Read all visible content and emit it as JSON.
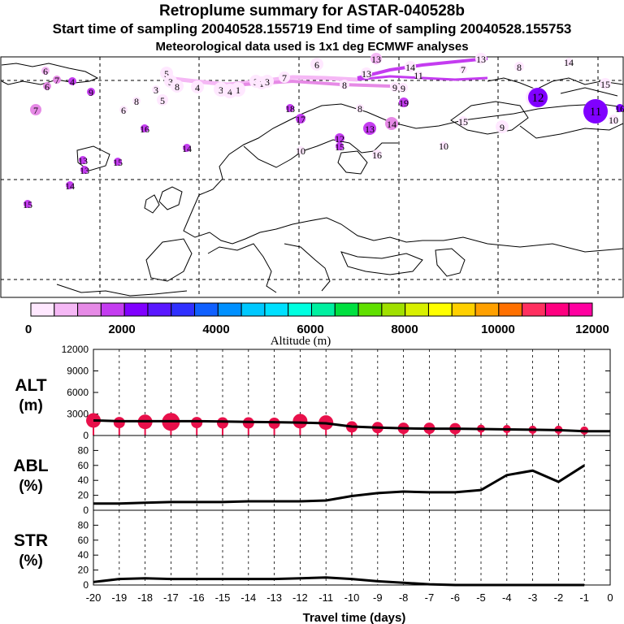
{
  "header": {
    "title": "Retroplume summary for ASTAR-040528b",
    "line2": "Start time of sampling 20040528.155719     End time of sampling 20040528.155753",
    "line3": "Meteorological data used is 1x1 deg ECMWF analyses"
  },
  "colors": {
    "scale": [
      "#ffe8ff",
      "#f5b8f5",
      "#e68ae6",
      "#c43cf0",
      "#8000ff",
      "#5a18ff",
      "#3030ff",
      "#1060ff",
      "#0090ff",
      "#00c8ff",
      "#00e0ff",
      "#00ffe0",
      "#00f0a0",
      "#00e040",
      "#60e000",
      "#a0e000",
      "#d8f000",
      "#ffff00",
      "#ffd000",
      "#ffa000",
      "#ff7000",
      "#ff3060",
      "#ff0080",
      "#ff00a0",
      "#e000a0",
      "#c00090",
      "#900080"
    ],
    "alt_markers": "#e8104a",
    "curve": "#000000"
  },
  "colorbar": {
    "ticks": [
      "0",
      "2000",
      "4000",
      "6000",
      "8000",
      "10000",
      "12000"
    ],
    "label": "Altitude (m)"
  },
  "map": {
    "labels": [
      {
        "t": "6",
        "k": 2
      },
      {
        "t": "7",
        "k": 3
      },
      {
        "t": "4",
        "k": 4
      },
      {
        "t": "6",
        "k": 3
      },
      {
        "t": "9",
        "k": 4
      },
      {
        "t": "7",
        "k": 3
      },
      {
        "t": "5",
        "k": 1
      },
      {
        "t": "3",
        "k": 1
      },
      {
        "t": "8",
        "k": 1
      },
      {
        "t": "4",
        "k": 1
      },
      {
        "t": "5",
        "k": 1
      },
      {
        "t": "3",
        "k": 1
      },
      {
        "t": "3",
        "k": 1
      },
      {
        "t": "4",
        "k": 1
      },
      {
        "t": "1",
        "k": 1
      },
      {
        "t": "3",
        "k": 1
      },
      {
        "t": "1",
        "k": 1
      },
      {
        "t": "3",
        "k": 1
      },
      {
        "t": "7",
        "k": 1
      },
      {
        "t": "6",
        "k": 1
      },
      {
        "t": "14",
        "k": 1
      },
      {
        "t": "13",
        "k": 1
      },
      {
        "t": "8",
        "k": 1
      },
      {
        "t": "13",
        "k": 1
      },
      {
        "t": "13",
        "k": 2
      },
      {
        "t": "15",
        "k": 1
      },
      {
        "t": "14",
        "k": 1
      },
      {
        "t": "11",
        "k": 1
      },
      {
        "t": "10",
        "k": 1
      },
      {
        "t": "7",
        "k": 1
      },
      {
        "t": "8",
        "k": 1
      },
      {
        "t": "9",
        "k": 1
      },
      {
        "t": "9",
        "k": 1
      },
      {
        "t": "15",
        "k": 1
      },
      {
        "t": "12",
        "k": 5
      },
      {
        "t": "11",
        "k": 5
      },
      {
        "t": "10",
        "k": 1
      },
      {
        "t": "16",
        "k": 5
      },
      {
        "t": "13",
        "k": 4
      },
      {
        "t": "14",
        "k": 3
      },
      {
        "t": "12",
        "k": 4
      },
      {
        "t": "19",
        "k": 4
      },
      {
        "t": "18",
        "k": 4
      },
      {
        "t": "17",
        "k": 4
      },
      {
        "t": "16",
        "k": 4
      },
      {
        "t": "14",
        "k": 4
      },
      {
        "t": "10",
        "k": 1
      },
      {
        "t": "6",
        "k": 1
      },
      {
        "t": "8",
        "k": 1
      },
      {
        "t": "9",
        "k": 1
      },
      {
        "t": "10",
        "k": 1
      },
      {
        "t": "11",
        "k": 1
      },
      {
        "t": "13",
        "k": 4
      },
      {
        "t": "13",
        "k": 4
      },
      {
        "t": "15",
        "k": 4
      },
      {
        "t": "14",
        "k": 4
      },
      {
        "t": "15",
        "k": 4
      },
      {
        "t": "16",
        "k": 1
      },
      {
        "t": "15",
        "k": 4
      },
      {
        "t": "8",
        "k": 1
      }
    ]
  },
  "x_axis": {
    "label": "Travel time (days)"
  },
  "chart_data": [
    {
      "type": "line",
      "name": "ALT",
      "ylabel": "ALT (m)",
      "ylabel_lines": [
        "ALT",
        "(m)"
      ],
      "ylim": [
        0,
        12000
      ],
      "yticks": [
        0,
        3000,
        6000,
        9000,
        12000
      ],
      "xlim": [
        -20,
        0
      ],
      "x": [
        -20,
        -19,
        -18,
        -17,
        -16,
        -15,
        -14,
        -13,
        -12,
        -11,
        -10,
        -9,
        -8,
        -7,
        -6,
        -5,
        -4,
        -3,
        -2,
        -1,
        0
      ],
      "series": [
        {
          "name": "mean altitude",
          "values": [
            2100,
            2000,
            2000,
            2000,
            2000,
            1950,
            1900,
            1850,
            1800,
            1700,
            1250,
            1100,
            1000,
            950,
            950,
            900,
            850,
            800,
            750,
            600,
            600
          ]
        }
      ],
      "markers": {
        "x": [
          -20,
          -19,
          -18,
          -17,
          -16,
          -15,
          -14,
          -13,
          -12,
          -11,
          -10,
          -9,
          -8,
          -7,
          -6,
          -5,
          -4,
          -3,
          -2,
          -1
        ],
        "values": [
          2100,
          1800,
          1900,
          1900,
          1800,
          1750,
          1750,
          1700,
          2000,
          1800,
          1200,
          1100,
          1000,
          1000,
          950,
          950,
          900,
          800,
          800,
          700
        ],
        "sizes": [
          4,
          3,
          4,
          5,
          3,
          3,
          3,
          3,
          4,
          4,
          3,
          3,
          3,
          3,
          3,
          2,
          2,
          2,
          2,
          2
        ]
      }
    },
    {
      "type": "line",
      "name": "ABL",
      "ylabel": "ABL (%)",
      "ylabel_lines": [
        "ABL",
        "(%)"
      ],
      "ylim": [
        0,
        100
      ],
      "yticks": [
        0,
        20,
        40,
        60,
        80
      ],
      "xlim": [
        -20,
        0
      ],
      "x": [
        -20,
        -19,
        -18,
        -17,
        -16,
        -15,
        -14,
        -13,
        -12,
        -11,
        -10,
        -9,
        -8,
        -7,
        -6,
        -5,
        -4,
        -3,
        -2,
        -1
      ],
      "series": [
        {
          "name": "ABL fraction",
          "values": [
            9,
            9,
            10,
            11,
            11,
            11,
            12,
            12,
            12,
            13,
            19,
            23,
            25,
            24,
            24,
            27,
            47,
            53,
            38,
            60
          ]
        }
      ]
    },
    {
      "type": "line",
      "name": "STR",
      "ylabel": "STR (%)",
      "ylabel_lines": [
        "STR",
        "(%)"
      ],
      "ylim": [
        0,
        100
      ],
      "yticks": [
        0,
        20,
        40,
        60,
        80
      ],
      "xlim": [
        -20,
        0
      ],
      "x": [
        -20,
        -19,
        -18,
        -17,
        -16,
        -15,
        -14,
        -13,
        -12,
        -11,
        -10,
        -9,
        -8,
        -7,
        -6,
        -5,
        -4,
        -3,
        -2,
        -1
      ],
      "x_tick_labels": [
        "-20",
        "-19",
        "-18",
        "-17",
        "-16",
        "-15",
        "-14",
        "-13",
        "-12",
        "-11",
        "-10",
        "-9",
        "-8",
        "-7",
        "-6",
        "-5",
        "-4",
        "-3",
        "-2",
        "-1",
        "0"
      ],
      "series": [
        {
          "name": "stratospheric fraction",
          "values": [
            4,
            8,
            9,
            8,
            8,
            8,
            8,
            8,
            9,
            10,
            8,
            5,
            3,
            1,
            0,
            0,
            0,
            0,
            0,
            0
          ]
        }
      ]
    }
  ]
}
